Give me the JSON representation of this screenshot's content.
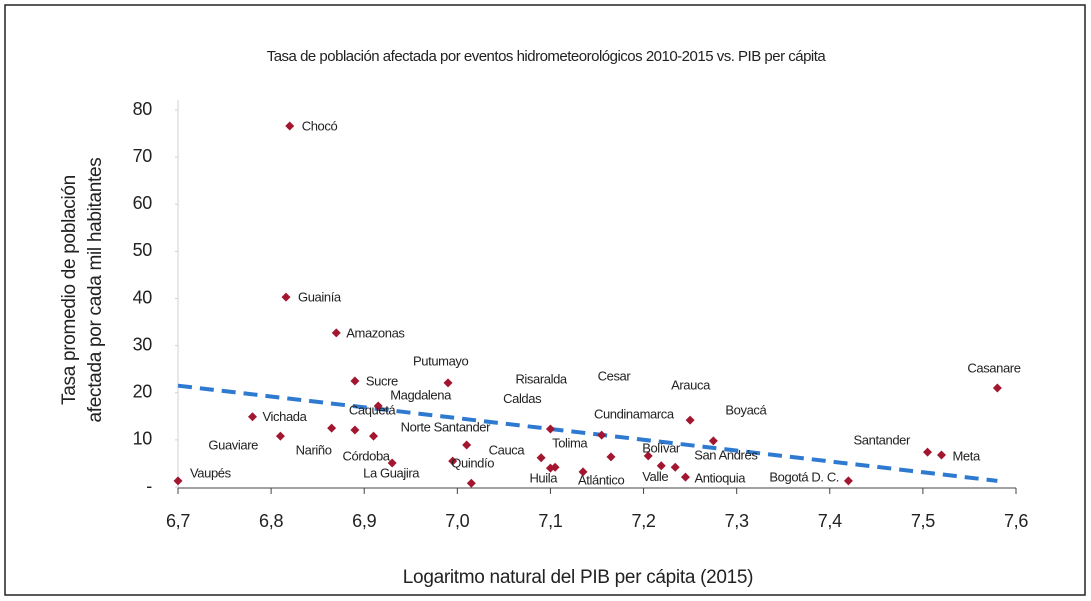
{
  "chart_data": {
    "type": "scatter",
    "title": "Tasa de población afectada por eventos hidrometeorológicos 2010-2015 vs. PIB per cápita",
    "xlabel": "Logaritmo natural del PIB per cápita (2015)",
    "ylabel": [
      "Tasa promedio de población",
      "afectada por cada mil habitantes"
    ],
    "labels": [
      "Chocó",
      "Guainía",
      "Amazonas",
      "Sucre",
      "Putumayo",
      "Casanare",
      "Magdalena",
      "Vichada",
      "Caquetá",
      "Nariño",
      "Guaviare",
      "Córdoba",
      "La Guajira",
      "Norte Santander",
      "Cauca",
      "Quindío",
      "Vaupés",
      "Risaralda",
      "Caldas",
      "Huila",
      "Tolima",
      "Atlántico",
      "Cesar",
      "Cundinamarca",
      "Bolívar",
      "Valle",
      "San Andrés",
      "Antioquia",
      "Arauca",
      "Boyacá",
      "Bogotá D. C.",
      "Santander",
      "Meta"
    ],
    "x": [
      6.82,
      6.816,
      6.87,
      6.89,
      6.99,
      7.58,
      6.915,
      6.78,
      6.89,
      6.865,
      6.81,
      6.91,
      6.93,
      6.995,
      7.01,
      7.015,
      6.7,
      7.1,
      7.09,
      7.1,
      7.105,
      7.135,
      7.155,
      7.165,
      7.205,
      7.219,
      7.234,
      7.245,
      7.25,
      7.275,
      7.42,
      7.505,
      7.52
    ],
    "values": [
      76.6,
      40.3,
      32.7,
      22.5,
      22.1,
      21.0,
      17.2,
      14.9,
      12.1,
      12.5,
      10.8,
      10.8,
      5.1,
      5.5,
      8.9,
      0.8,
      1.3,
      12.3,
      6.2,
      4.0,
      4.2,
      3.2,
      11.0,
      6.4,
      6.6,
      4.5,
      4.2,
      2.1,
      14.2,
      9.8,
      1.3,
      7.4,
      6.8
    ],
    "color": "#a3162f",
    "trendline": {
      "x": [
        6.7,
        7.58
      ],
      "values": [
        21.5,
        1.3
      ],
      "color": "#2f7ad1"
    },
    "xlim": [
      6.7,
      7.6
    ],
    "xticks": [
      {
        "value": 6.7,
        "label": "6,7"
      },
      {
        "value": 6.8,
        "label": "6,8"
      },
      {
        "value": 6.9,
        "label": "6,9"
      },
      {
        "value": 7.0,
        "label": "7,0"
      },
      {
        "value": 7.1,
        "label": "7,1"
      },
      {
        "value": 7.2,
        "label": "7,2"
      },
      {
        "value": 7.3,
        "label": "7,3"
      },
      {
        "value": 7.4,
        "label": "7,4"
      },
      {
        "value": 7.5,
        "label": "7,5"
      },
      {
        "value": 7.6,
        "label": "7,6"
      }
    ],
    "ylim": [
      0,
      80
    ],
    "yticks": [
      {
        "value": 0,
        "label": "-"
      },
      10,
      20,
      30,
      40,
      50,
      60,
      70,
      80
    ]
  }
}
